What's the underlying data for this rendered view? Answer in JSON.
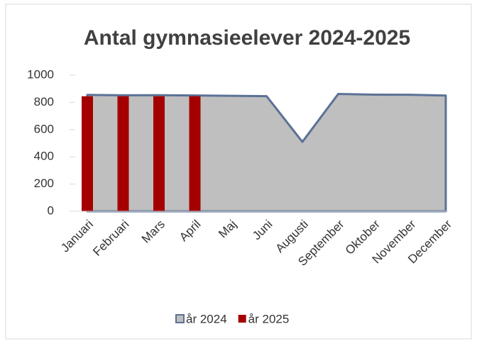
{
  "chart_data": {
    "type": "combo",
    "title": "Antal  gymnasieelever 2024-2025",
    "categories": [
      "Januari",
      "Februari",
      "Mars",
      "April",
      "Maj",
      "Juni",
      "Augusti",
      "September",
      "Oktober",
      "November",
      "December"
    ],
    "series": [
      {
        "name": "år 2024",
        "type": "area",
        "color": "#bfbfbf",
        "line_color": "#5b7196",
        "values": [
          855,
          852,
          853,
          851,
          848,
          846,
          510,
          862,
          857,
          856,
          850
        ]
      },
      {
        "name": "år 2025",
        "type": "bar",
        "color": "#a50000",
        "values": [
          845,
          845,
          845,
          845,
          null,
          null,
          null,
          null,
          null,
          null,
          null
        ]
      }
    ],
    "ylim": [
      0,
      1000
    ],
    "yticks": [
      0,
      200,
      400,
      600,
      800,
      1000
    ],
    "grid": false,
    "legend": "bottom"
  }
}
